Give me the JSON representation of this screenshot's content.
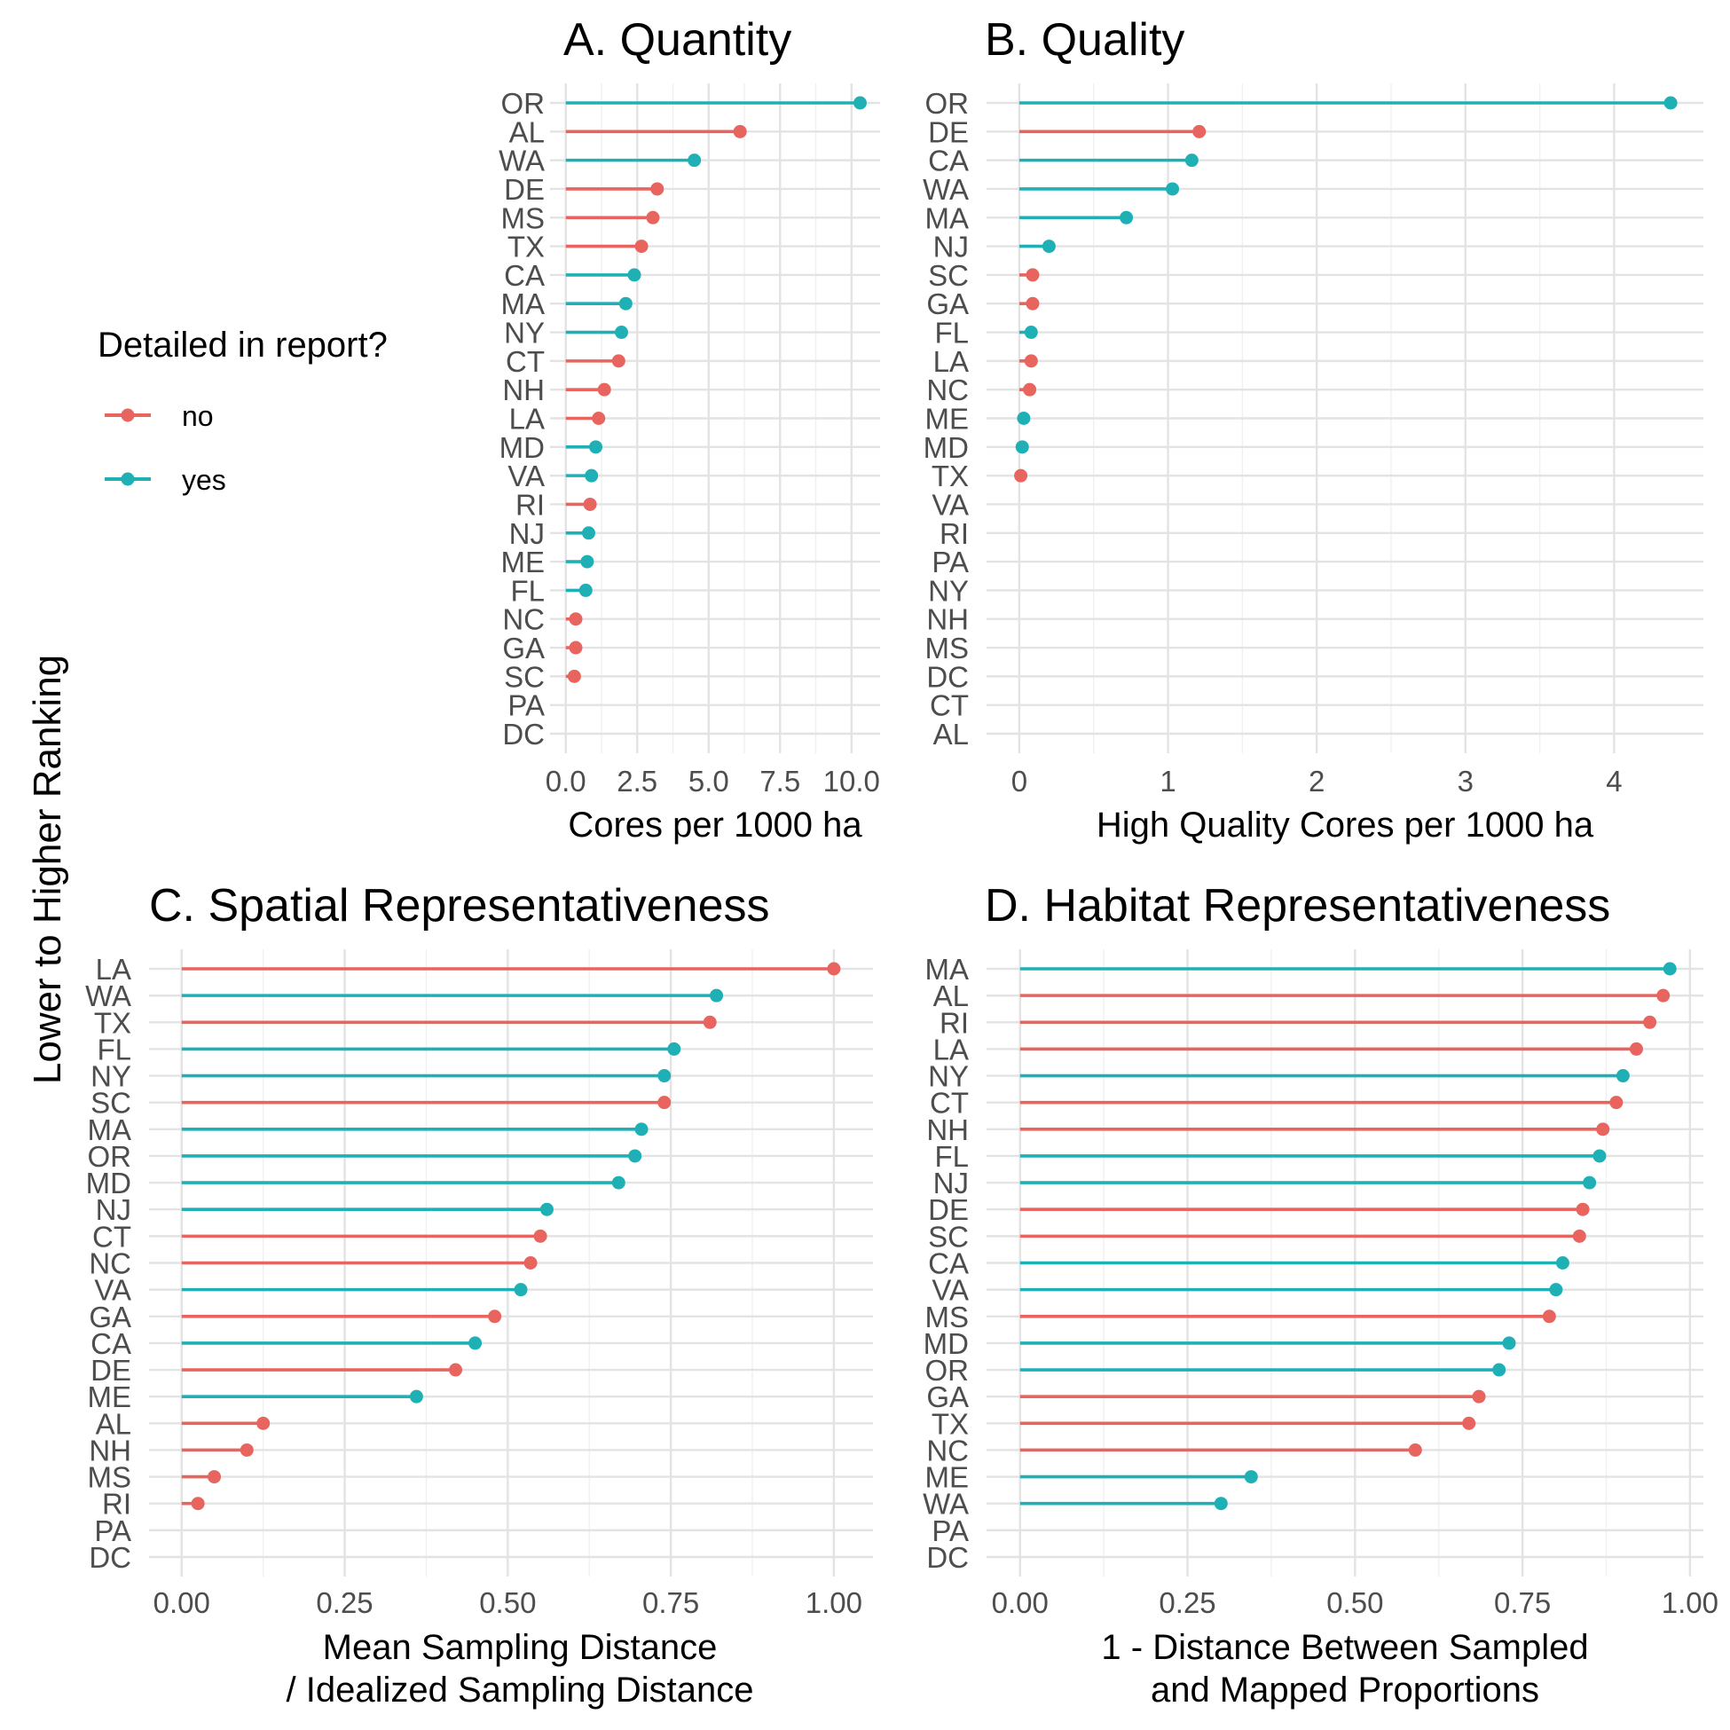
{
  "y_axis_title": "Lower to Higher Ranking",
  "legend": {
    "title": "Detailed in report?",
    "entries": [
      {
        "label": "no",
        "color": "#E8645E"
      },
      {
        "label": "yes",
        "color": "#1FB0B6"
      }
    ]
  },
  "colors": {
    "no": "#E8645E",
    "yes": "#1FB0B6",
    "grid": "#e3e3e3",
    "tick_text": "#4d4d4d"
  },
  "chart_data": [
    {
      "type": "lollipop",
      "title": "A. Quantity",
      "xlabel": [
        "Cores per 1000 ha"
      ],
      "xlim": [
        -0.55,
        11.0
      ],
      "xticks": [
        0,
        2.5,
        5,
        7.5,
        10
      ],
      "xtick_labels": [
        "0.0",
        "2.5",
        "5.0",
        "7.5",
        "10.0"
      ],
      "grid": true,
      "points": [
        {
          "state": "OR",
          "value": 10.3,
          "detailed": "yes"
        },
        {
          "state": "AL",
          "value": 6.1,
          "detailed": "no"
        },
        {
          "state": "WA",
          "value": 4.5,
          "detailed": "yes"
        },
        {
          "state": "DE",
          "value": 3.2,
          "detailed": "no"
        },
        {
          "state": "MS",
          "value": 3.05,
          "detailed": "no"
        },
        {
          "state": "TX",
          "value": 2.65,
          "detailed": "no"
        },
        {
          "state": "CA",
          "value": 2.4,
          "detailed": "yes"
        },
        {
          "state": "MA",
          "value": 2.1,
          "detailed": "yes"
        },
        {
          "state": "NY",
          "value": 1.95,
          "detailed": "yes"
        },
        {
          "state": "CT",
          "value": 1.85,
          "detailed": "no"
        },
        {
          "state": "NH",
          "value": 1.35,
          "detailed": "no"
        },
        {
          "state": "LA",
          "value": 1.15,
          "detailed": "no"
        },
        {
          "state": "MD",
          "value": 1.05,
          "detailed": "yes"
        },
        {
          "state": "VA",
          "value": 0.9,
          "detailed": "yes"
        },
        {
          "state": "RI",
          "value": 0.85,
          "detailed": "no"
        },
        {
          "state": "NJ",
          "value": 0.8,
          "detailed": "yes"
        },
        {
          "state": "ME",
          "value": 0.75,
          "detailed": "yes"
        },
        {
          "state": "FL",
          "value": 0.7,
          "detailed": "yes"
        },
        {
          "state": "NC",
          "value": 0.35,
          "detailed": "no"
        },
        {
          "state": "GA",
          "value": 0.35,
          "detailed": "no"
        },
        {
          "state": "SC",
          "value": 0.3,
          "detailed": "no"
        },
        {
          "state": "PA",
          "value": null,
          "detailed": null
        },
        {
          "state": "DC",
          "value": null,
          "detailed": null
        }
      ]
    },
    {
      "type": "lollipop",
      "title": "B. Quality",
      "xlabel": [
        "High Quality Cores per 1000 ha"
      ],
      "xlim": [
        -0.22,
        4.6
      ],
      "xticks": [
        0,
        1,
        2,
        3,
        4
      ],
      "xtick_labels": [
        "0",
        "1",
        "2",
        "3",
        "4"
      ],
      "grid": true,
      "points": [
        {
          "state": "OR",
          "value": 4.38,
          "detailed": "yes"
        },
        {
          "state": "DE",
          "value": 1.21,
          "detailed": "no"
        },
        {
          "state": "CA",
          "value": 1.16,
          "detailed": "yes"
        },
        {
          "state": "WA",
          "value": 1.03,
          "detailed": "yes"
        },
        {
          "state": "MA",
          "value": 0.72,
          "detailed": "yes"
        },
        {
          "state": "NJ",
          "value": 0.2,
          "detailed": "yes"
        },
        {
          "state": "SC",
          "value": 0.09,
          "detailed": "no"
        },
        {
          "state": "GA",
          "value": 0.09,
          "detailed": "no"
        },
        {
          "state": "FL",
          "value": 0.08,
          "detailed": "yes"
        },
        {
          "state": "LA",
          "value": 0.08,
          "detailed": "no"
        },
        {
          "state": "NC",
          "value": 0.07,
          "detailed": "no"
        },
        {
          "state": "ME",
          "value": 0.03,
          "detailed": "yes"
        },
        {
          "state": "MD",
          "value": 0.02,
          "detailed": "yes"
        },
        {
          "state": "TX",
          "value": 0.01,
          "detailed": "no"
        },
        {
          "state": "VA",
          "value": null,
          "detailed": null
        },
        {
          "state": "RI",
          "value": null,
          "detailed": null
        },
        {
          "state": "PA",
          "value": null,
          "detailed": null
        },
        {
          "state": "NY",
          "value": null,
          "detailed": null
        },
        {
          "state": "NH",
          "value": null,
          "detailed": null
        },
        {
          "state": "MS",
          "value": null,
          "detailed": null
        },
        {
          "state": "DC",
          "value": null,
          "detailed": null
        },
        {
          "state": "CT",
          "value": null,
          "detailed": null
        },
        {
          "state": "AL",
          "value": null,
          "detailed": null
        }
      ]
    },
    {
      "type": "lollipop",
      "title": "C. Spatial Representativeness",
      "xlabel": [
        "Mean Sampling Distance",
        "/ Idealized Sampling Distance"
      ],
      "xlim": [
        -0.05,
        1.06
      ],
      "xticks": [
        0,
        0.25,
        0.5,
        0.75,
        1.0
      ],
      "xtick_labels": [
        "0.00",
        "0.25",
        "0.50",
        "0.75",
        "1.00"
      ],
      "grid": true,
      "points": [
        {
          "state": "LA",
          "value": 1.0,
          "detailed": "no"
        },
        {
          "state": "WA",
          "value": 0.82,
          "detailed": "yes"
        },
        {
          "state": "TX",
          "value": 0.81,
          "detailed": "no"
        },
        {
          "state": "FL",
          "value": 0.755,
          "detailed": "yes"
        },
        {
          "state": "NY",
          "value": 0.74,
          "detailed": "yes"
        },
        {
          "state": "SC",
          "value": 0.74,
          "detailed": "no"
        },
        {
          "state": "MA",
          "value": 0.705,
          "detailed": "yes"
        },
        {
          "state": "OR",
          "value": 0.695,
          "detailed": "yes"
        },
        {
          "state": "MD",
          "value": 0.67,
          "detailed": "yes"
        },
        {
          "state": "NJ",
          "value": 0.56,
          "detailed": "yes"
        },
        {
          "state": "CT",
          "value": 0.55,
          "detailed": "no"
        },
        {
          "state": "NC",
          "value": 0.535,
          "detailed": "no"
        },
        {
          "state": "VA",
          "value": 0.52,
          "detailed": "yes"
        },
        {
          "state": "GA",
          "value": 0.48,
          "detailed": "no"
        },
        {
          "state": "CA",
          "value": 0.45,
          "detailed": "yes"
        },
        {
          "state": "DE",
          "value": 0.42,
          "detailed": "no"
        },
        {
          "state": "ME",
          "value": 0.36,
          "detailed": "yes"
        },
        {
          "state": "AL",
          "value": 0.125,
          "detailed": "no"
        },
        {
          "state": "NH",
          "value": 0.1,
          "detailed": "no"
        },
        {
          "state": "MS",
          "value": 0.05,
          "detailed": "no"
        },
        {
          "state": "RI",
          "value": 0.025,
          "detailed": "no"
        },
        {
          "state": "PA",
          "value": null,
          "detailed": null
        },
        {
          "state": "DC",
          "value": null,
          "detailed": null
        }
      ]
    },
    {
      "type": "lollipop",
      "title": "D. Habitat Representativeness",
      "xlabel": [
        "1 - Distance Between Sampled",
        "and Mapped Proportions"
      ],
      "xlim": [
        -0.05,
        1.02
      ],
      "xticks": [
        0,
        0.25,
        0.5,
        0.75,
        1.0
      ],
      "xtick_labels": [
        "0.00",
        "0.25",
        "0.50",
        "0.75",
        "1.00"
      ],
      "grid": true,
      "points": [
        {
          "state": "MA",
          "value": 0.97,
          "detailed": "yes"
        },
        {
          "state": "AL",
          "value": 0.96,
          "detailed": "no"
        },
        {
          "state": "RI",
          "value": 0.94,
          "detailed": "no"
        },
        {
          "state": "LA",
          "value": 0.92,
          "detailed": "no"
        },
        {
          "state": "NY",
          "value": 0.9,
          "detailed": "yes"
        },
        {
          "state": "CT",
          "value": 0.89,
          "detailed": "no"
        },
        {
          "state": "NH",
          "value": 0.87,
          "detailed": "no"
        },
        {
          "state": "FL",
          "value": 0.865,
          "detailed": "yes"
        },
        {
          "state": "NJ",
          "value": 0.85,
          "detailed": "yes"
        },
        {
          "state": "DE",
          "value": 0.84,
          "detailed": "no"
        },
        {
          "state": "SC",
          "value": 0.835,
          "detailed": "no"
        },
        {
          "state": "CA",
          "value": 0.81,
          "detailed": "yes"
        },
        {
          "state": "VA",
          "value": 0.8,
          "detailed": "yes"
        },
        {
          "state": "MS",
          "value": 0.79,
          "detailed": "no"
        },
        {
          "state": "MD",
          "value": 0.73,
          "detailed": "yes"
        },
        {
          "state": "OR",
          "value": 0.715,
          "detailed": "yes"
        },
        {
          "state": "GA",
          "value": 0.685,
          "detailed": "no"
        },
        {
          "state": "TX",
          "value": 0.67,
          "detailed": "no"
        },
        {
          "state": "NC",
          "value": 0.59,
          "detailed": "no"
        },
        {
          "state": "ME",
          "value": 0.345,
          "detailed": "yes"
        },
        {
          "state": "WA",
          "value": 0.3,
          "detailed": "yes"
        },
        {
          "state": "PA",
          "value": null,
          "detailed": null
        },
        {
          "state": "DC",
          "value": null,
          "detailed": null
        }
      ]
    }
  ]
}
